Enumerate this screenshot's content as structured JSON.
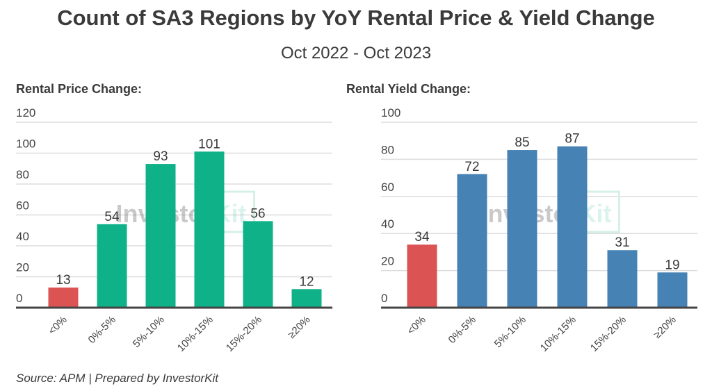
{
  "title": "Count of SA3 Regions by YoY Rental Price & Yield Change",
  "subtitle": "Oct 2022 - Oct 2023",
  "source": "Source: APM | Prepared by InvestorKit",
  "watermark": "InvestorKit",
  "colors": {
    "negative": "#db5353",
    "price": "#0fb189",
    "yield": "#4682b4",
    "grid": "#dddddd",
    "axis": "#444444"
  },
  "chart_data": [
    {
      "type": "bar",
      "title": "Rental Price Change:",
      "categories": [
        "<0%",
        "0%-5%",
        "5%-10%",
        "10%-15%",
        "15%-20%",
        "≥20%"
      ],
      "values": [
        13,
        54,
        93,
        101,
        56,
        12
      ],
      "yticks": [
        0,
        20,
        40,
        60,
        80,
        100,
        120
      ],
      "ylim": [
        0,
        120
      ],
      "grid": true,
      "bar_colors": [
        "#db5353",
        "#0fb189",
        "#0fb189",
        "#0fb189",
        "#0fb189",
        "#0fb189"
      ]
    },
    {
      "type": "bar",
      "title": "Rental Yield Change:",
      "categories": [
        "<0%",
        "0%-5%",
        "5%-10%",
        "10%-15%",
        "15%-20%",
        "≥20%"
      ],
      "values": [
        34,
        72,
        85,
        87,
        31,
        19
      ],
      "yticks": [
        0,
        20,
        40,
        60,
        80,
        100
      ],
      "ylim": [
        0,
        100
      ],
      "grid": true,
      "bar_colors": [
        "#db5353",
        "#4682b4",
        "#4682b4",
        "#4682b4",
        "#4682b4",
        "#4682b4"
      ]
    }
  ]
}
